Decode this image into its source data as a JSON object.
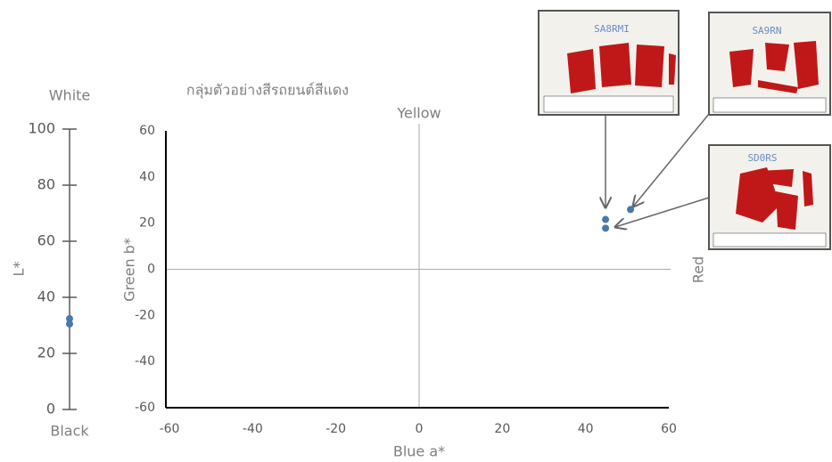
{
  "chart_data": [
    {
      "type": "strip",
      "top_label": "White",
      "bottom_label": "Black",
      "y_label": "L*",
      "values": [
        32.4,
        30.5
      ],
      "color": "#4a78a8",
      "ylim": [
        0,
        100
      ],
      "yticks": [
        0,
        20,
        40,
        60,
        80,
        100
      ]
    },
    {
      "type": "scatter",
      "title": "กลุ่มตัวอย่างสีรถยนต์สีแดง",
      "x_label": "Blue a*",
      "y_label": "Green b*",
      "top_annotation": "Yellow",
      "right_annotation": "Red",
      "x": [
        44.8,
        44.8,
        50.8
      ],
      "values": [
        21.6,
        17.8,
        25.9
      ],
      "color": "#4a78a8",
      "xlim": [
        -60,
        60
      ],
      "xticks": [
        -60,
        -40,
        -20,
        0,
        20,
        40,
        60
      ],
      "ylim": [
        -60,
        60
      ],
      "yticks": [
        -60,
        -40,
        -20,
        0,
        20,
        40,
        60
      ]
    }
  ],
  "photos": [
    {
      "label": "SA8RMI"
    },
    {
      "label": "SA9RN"
    },
    {
      "label": "SD0RS"
    }
  ]
}
